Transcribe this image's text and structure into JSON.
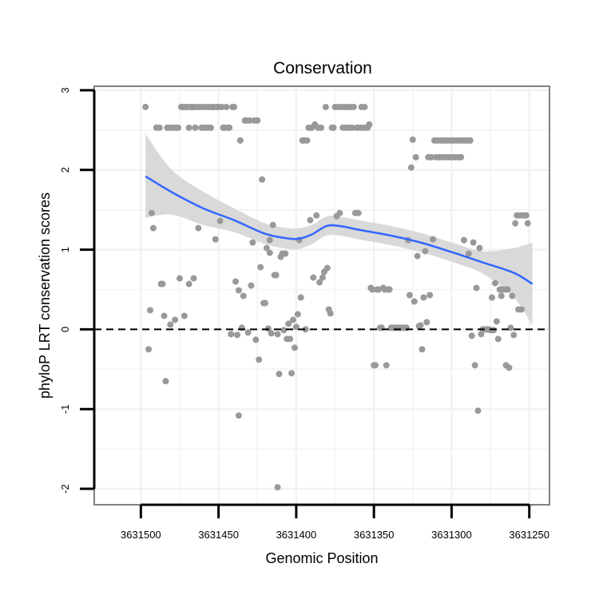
{
  "chart_data": {
    "type": "scatter",
    "title": "Conservation",
    "xlabel": "Genomic Position",
    "ylabel": "phyloP LRT conservation scores",
    "x_reversed": true,
    "xlim": [
      3631530,
      3631237
    ],
    "ylim": [
      -2.2,
      3.05
    ],
    "x_ticks": [
      3631500,
      3631450,
      3631400,
      3631350,
      3631300,
      3631250
    ],
    "x_tick_labels": [
      "3631500",
      "3631450",
      "3631400",
      "3631350",
      "3631300",
      "3631250"
    ],
    "y_ticks": [
      -2,
      -1,
      0,
      1,
      2,
      3
    ],
    "y_tick_labels": [
      "-2",
      "-1",
      "0",
      "1",
      "2",
      "3"
    ],
    "grid": true,
    "reference_line": {
      "y": 0,
      "style": "dashed"
    },
    "colors": {
      "points": "#999999",
      "smooth": "#3366ff",
      "band": "#d9d9d9",
      "panel_border": "#808080",
      "grid": "#f2f2f2",
      "refline": "#000000"
    },
    "smooth": {
      "name": "loess",
      "x": [
        3631497,
        3631480,
        3631460,
        3631440,
        3631420,
        3631405,
        3631398,
        3631390,
        3631380,
        3631370,
        3631360,
        3631340,
        3631320,
        3631300,
        3631280,
        3631260,
        3631248
      ],
      "y": [
        1.92,
        1.72,
        1.52,
        1.37,
        1.2,
        1.14,
        1.14,
        1.19,
        1.3,
        1.29,
        1.25,
        1.18,
        1.09,
        0.97,
        0.84,
        0.71,
        0.57
      ],
      "upper": [
        2.45,
        2.0,
        1.73,
        1.52,
        1.33,
        1.27,
        1.27,
        1.31,
        1.42,
        1.41,
        1.37,
        1.3,
        1.21,
        1.09,
        0.98,
        1.02,
        1.09
      ],
      "lower": [
        1.4,
        1.44,
        1.31,
        1.22,
        1.07,
        1.01,
        1.01,
        1.07,
        1.18,
        1.17,
        1.13,
        1.06,
        0.97,
        0.85,
        0.7,
        0.4,
        0.05
      ]
    },
    "points": [
      [
        3631497,
        2.79
      ],
      [
        3631495,
        -0.25
      ],
      [
        3631494,
        0.24
      ],
      [
        3631493,
        1.46
      ],
      [
        3631492,
        1.27
      ],
      [
        3631490,
        2.53
      ],
      [
        3631488,
        2.53
      ],
      [
        3631487,
        0.57
      ],
      [
        3631486,
        0.57
      ],
      [
        3631485,
        0.17
      ],
      [
        3631484,
        -0.65
      ],
      [
        3631483,
        2.53
      ],
      [
        3631482,
        2.53
      ],
      [
        3631481,
        0.06
      ],
      [
        3631480,
        2.53
      ],
      [
        3631479,
        2.53
      ],
      [
        3631478,
        0.12
      ],
      [
        3631477,
        2.53
      ],
      [
        3631476,
        2.53
      ],
      [
        3631475,
        0.64
      ],
      [
        3631474,
        2.79
      ],
      [
        3631473,
        2.79
      ],
      [
        3631472,
        2.79
      ],
      [
        3631472,
        0.17
      ],
      [
        3631471,
        2.79
      ],
      [
        3631470,
        2.79
      ],
      [
        3631469,
        2.53
      ],
      [
        3631469,
        0.57
      ],
      [
        3631468,
        2.79
      ],
      [
        3631467,
        2.79
      ],
      [
        3631466,
        2.79
      ],
      [
        3631466,
        0.64
      ],
      [
        3631465,
        2.53
      ],
      [
        3631464,
        2.79
      ],
      [
        3631463,
        1.27
      ],
      [
        3631462,
        2.79
      ],
      [
        3631461,
        2.53
      ],
      [
        3631460,
        2.79
      ],
      [
        3631459,
        2.53
      ],
      [
        3631458,
        2.79
      ],
      [
        3631457,
        2.53
      ],
      [
        3631456,
        2.79
      ],
      [
        3631455,
        2.53
      ],
      [
        3631454,
        2.79
      ],
      [
        3631453,
        2.79
      ],
      [
        3631452,
        1.13
      ],
      [
        3631451,
        2.79
      ],
      [
        3631450,
        2.79
      ],
      [
        3631449,
        1.36
      ],
      [
        3631448,
        2.79
      ],
      [
        3631447,
        2.53
      ],
      [
        3631446,
        2.53
      ],
      [
        3631445,
        2.79
      ],
      [
        3631444,
        2.53
      ],
      [
        3631443,
        2.53
      ],
      [
        3631442,
        -0.06
      ],
      [
        3631441,
        2.79
      ],
      [
        3631440,
        2.79
      ],
      [
        3631439,
        0.6
      ],
      [
        3631438,
        -0.07
      ],
      [
        3631437,
        -1.08
      ],
      [
        3631437,
        0.49
      ],
      [
        3631436,
        2.37
      ],
      [
        3631435,
        0.02
      ],
      [
        3631434,
        0.42
      ],
      [
        3631433,
        2.62
      ],
      [
        3631432,
        2.62
      ],
      [
        3631431,
        -0.04
      ],
      [
        3631430,
        2.62
      ],
      [
        3631429,
        0.55
      ],
      [
        3631428,
        1.09
      ],
      [
        3631427,
        2.62
      ],
      [
        3631426,
        -0.13
      ],
      [
        3631425,
        2.62
      ],
      [
        3631424,
        -0.38
      ],
      [
        3631423,
        0.78
      ],
      [
        3631422,
        1.88
      ],
      [
        3631421,
        0.33
      ],
      [
        3631420,
        0.33
      ],
      [
        3631419,
        1.02
      ],
      [
        3631418,
        0.01
      ],
      [
        3631417,
        1.12
      ],
      [
        3631417,
        0.96
      ],
      [
        3631416,
        -0.05
      ],
      [
        3631415,
        1.31
      ],
      [
        3631414,
        0.68
      ],
      [
        3631413,
        0.68
      ],
      [
        3631412,
        -0.06
      ],
      [
        3631412,
        -1.98
      ],
      [
        3631411,
        -0.56
      ],
      [
        3631410,
        0.91
      ],
      [
        3631409,
        0.95
      ],
      [
        3631408,
        -0.01
      ],
      [
        3631407,
        0.95
      ],
      [
        3631406,
        -0.12
      ],
      [
        3631405,
        0.07
      ],
      [
        3631404,
        -0.12
      ],
      [
        3631403,
        -0.55
      ],
      [
        3631402,
        0.12
      ],
      [
        3631401,
        -0.23
      ],
      [
        3631400,
        0.03
      ],
      [
        3631399,
        0.19
      ],
      [
        3631398,
        1.12
      ],
      [
        3631397,
        0.4
      ],
      [
        3631396,
        2.37
      ],
      [
        3631395,
        2.37
      ],
      [
        3631394,
        0.0
      ],
      [
        3631393,
        2.37
      ],
      [
        3631392,
        2.53
      ],
      [
        3631391,
        1.37
      ],
      [
        3631390,
        2.53
      ],
      [
        3631389,
        0.65
      ],
      [
        3631388,
        2.57
      ],
      [
        3631387,
        1.43
      ],
      [
        3631386,
        2.53
      ],
      [
        3631385,
        0.59
      ],
      [
        3631384,
        2.53
      ],
      [
        3631383,
        0.65
      ],
      [
        3631382,
        0.72
      ],
      [
        3631381,
        2.79
      ],
      [
        3631380,
        0.77
      ],
      [
        3631379,
        0.25
      ],
      [
        3631378,
        0.2
      ],
      [
        3631377,
        2.53
      ],
      [
        3631376,
        2.53
      ],
      [
        3631375,
        2.79
      ],
      [
        3631374,
        1.42
      ],
      [
        3631373,
        2.79
      ],
      [
        3631372,
        1.46
      ],
      [
        3631371,
        2.79
      ],
      [
        3631370,
        2.53
      ],
      [
        3631369,
        2.79
      ],
      [
        3631368,
        2.53
      ],
      [
        3631367,
        2.79
      ],
      [
        3631366,
        2.53
      ],
      [
        3631365,
        2.79
      ],
      [
        3631364,
        2.53
      ],
      [
        3631363,
        2.79
      ],
      [
        3631362,
        1.46
      ],
      [
        3631361,
        2.53
      ],
      [
        3631360,
        1.46
      ],
      [
        3631359,
        2.53
      ],
      [
        3631358,
        2.79
      ],
      [
        3631357,
        2.53
      ],
      [
        3631356,
        2.79
      ],
      [
        3631355,
        2.53
      ],
      [
        3631354,
        2.53
      ],
      [
        3631353,
        2.57
      ],
      [
        3631352,
        0.52
      ],
      [
        3631351,
        0.5
      ],
      [
        3631350,
        -0.45
      ],
      [
        3631349,
        -0.45
      ],
      [
        3631348,
        0.5
      ],
      [
        3631347,
        0.5
      ],
      [
        3631346,
        0.02
      ],
      [
        3631345,
        0.02
      ],
      [
        3631344,
        0.52
      ],
      [
        3631343,
        0.5
      ],
      [
        3631342,
        -0.45
      ],
      [
        3631341,
        0.5
      ],
      [
        3631340,
        0.5
      ],
      [
        3631339,
        0.02
      ],
      [
        3631338,
        0.02
      ],
      [
        3631337,
        0.02
      ],
      [
        3631336,
        0.02
      ],
      [
        3631335,
        0.02
      ],
      [
        3631334,
        0.02
      ],
      [
        3631333,
        0.02
      ],
      [
        3631332,
        0.02
      ],
      [
        3631331,
        0.02
      ],
      [
        3631330,
        0.02
      ],
      [
        3631329,
        0.02
      ],
      [
        3631328,
        1.12
      ],
      [
        3631327,
        0.43
      ],
      [
        3631326,
        2.03
      ],
      [
        3631325,
        2.38
      ],
      [
        3631324,
        0.35
      ],
      [
        3631323,
        2.16
      ],
      [
        3631322,
        0.92
      ],
      [
        3631321,
        0.04
      ],
      [
        3631320,
        0.05
      ],
      [
        3631319,
        -0.25
      ],
      [
        3631318,
        0.4
      ],
      [
        3631317,
        0.98
      ],
      [
        3631316,
        0.09
      ],
      [
        3631315,
        2.16
      ],
      [
        3631314,
        0.43
      ],
      [
        3631313,
        2.16
      ],
      [
        3631312,
        1.13
      ],
      [
        3631311,
        2.37
      ],
      [
        3631310,
        2.16
      ],
      [
        3631309,
        2.37
      ],
      [
        3631308,
        2.16
      ],
      [
        3631307,
        2.37
      ],
      [
        3631306,
        2.16
      ],
      [
        3631305,
        2.37
      ],
      [
        3631304,
        2.16
      ],
      [
        3631303,
        2.37
      ],
      [
        3631302,
        2.16
      ],
      [
        3631301,
        2.37
      ],
      [
        3631300,
        2.16
      ],
      [
        3631299,
        2.37
      ],
      [
        3631298,
        2.16
      ],
      [
        3631297,
        2.37
      ],
      [
        3631296,
        2.16
      ],
      [
        3631295,
        2.37
      ],
      [
        3631294,
        2.16
      ],
      [
        3631293,
        2.37
      ],
      [
        3631292,
        1.12
      ],
      [
        3631291,
        2.37
      ],
      [
        3631290,
        2.37
      ],
      [
        3631289,
        0.95
      ],
      [
        3631288,
        2.37
      ],
      [
        3631287,
        -0.08
      ],
      [
        3631286,
        1.09
      ],
      [
        3631285,
        -0.45
      ],
      [
        3631284,
        0.52
      ],
      [
        3631283,
        -1.02
      ],
      [
        3631282,
        1.02
      ],
      [
        3631281,
        -0.06
      ],
      [
        3631280,
        0.0
      ],
      [
        3631279,
        0.0
      ],
      [
        3631278,
        0.0
      ],
      [
        3631277,
        0.0
      ],
      [
        3631276,
        0.0
      ],
      [
        3631275,
        -0.01
      ],
      [
        3631274,
        0.4
      ],
      [
        3631273,
        -0.01
      ],
      [
        3631272,
        0.58
      ],
      [
        3631271,
        0.1
      ],
      [
        3631270,
        -0.12
      ],
      [
        3631269,
        0.5
      ],
      [
        3631268,
        0.42
      ],
      [
        3631267,
        0.5
      ],
      [
        3631266,
        0.5
      ],
      [
        3631265,
        -0.45
      ],
      [
        3631264,
        0.5
      ],
      [
        3631263,
        -0.48
      ],
      [
        3631262,
        0.02
      ],
      [
        3631261,
        0.42
      ],
      [
        3631260,
        -0.07
      ],
      [
        3631259,
        1.33
      ],
      [
        3631258,
        1.43
      ],
      [
        3631257,
        0.25
      ],
      [
        3631256,
        1.43
      ],
      [
        3631255,
        0.25
      ],
      [
        3631254,
        1.43
      ],
      [
        3631253,
        1.43
      ],
      [
        3631252,
        1.43
      ],
      [
        3631251,
        1.33
      ]
    ]
  }
}
